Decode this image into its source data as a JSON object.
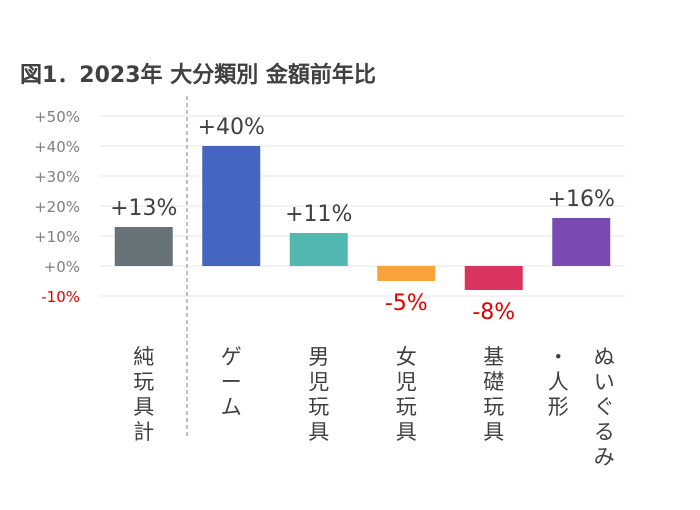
{
  "chart_data": {
    "type": "bar",
    "title": "図1．2023年 大分類別 金額前年比",
    "xlabel": "",
    "ylabel": "",
    "ylim": [
      -10,
      50
    ],
    "yticks": [
      "+50%",
      "+40%",
      "+30%",
      "+20%",
      "+10%",
      "+0%",
      "-10%"
    ],
    "ytick_values": [
      50,
      40,
      30,
      20,
      10,
      0,
      -10
    ],
    "categories": [
      "純玩具計",
      "ゲーム",
      "男児玩具",
      "女児玩具",
      "基礎玩具",
      "ぬいぐるみ・人形"
    ],
    "values": [
      13,
      40,
      11,
      -5,
      -8,
      16
    ],
    "data_labels": [
      "+13%",
      "+40%",
      "+11%",
      "-5%",
      "-8%",
      "+16%"
    ],
    "colors": [
      "#687378",
      "#4466c0",
      "#52b8b0",
      "#f8a33a",
      "#d9335f",
      "#7a4ab0"
    ],
    "negative_color": "#e00000",
    "grid": true,
    "legend": "none",
    "separator_after_first": true
  }
}
